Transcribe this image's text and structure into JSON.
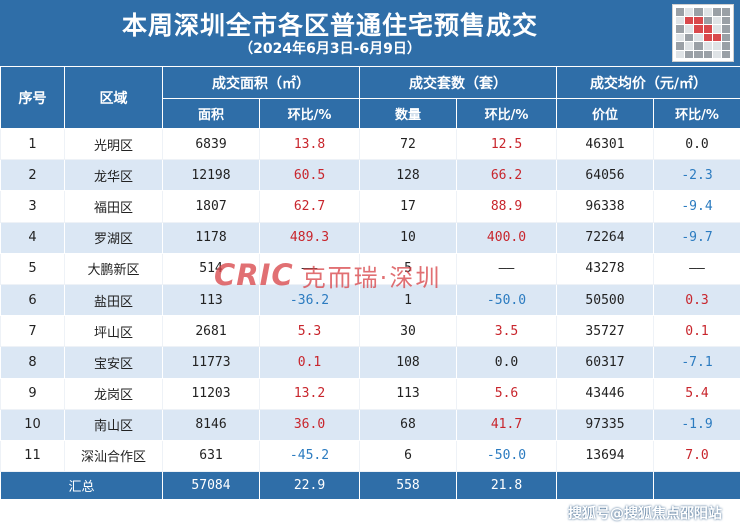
{
  "header": {
    "title": "本周深圳全市各区普通住宅预售成交",
    "subtitle": "（2024年6月3日-6月9日）"
  },
  "columns": {
    "seq": "序号",
    "district": "区域",
    "area_group": "成交面积（㎡）",
    "units_group": "成交套数（套）",
    "price_group": "成交均价（元/㎡）",
    "area": "面积",
    "area_chg": "环比/%",
    "units": "数量",
    "units_chg": "环比/%",
    "price": "价位",
    "price_chg": "环比/%"
  },
  "rows": [
    {
      "seq": "1",
      "district": "光明区",
      "area": "6839",
      "area_chg": "13.8",
      "area_dir": "up",
      "units": "72",
      "units_chg": "12.5",
      "units_dir": "up",
      "price": "46301",
      "price_chg": "0.0",
      "price_dir": "flat"
    },
    {
      "seq": "2",
      "district": "龙华区",
      "area": "12198",
      "area_chg": "60.5",
      "area_dir": "up",
      "units": "128",
      "units_chg": "66.2",
      "units_dir": "up",
      "price": "64056",
      "price_chg": "-2.3",
      "price_dir": "down"
    },
    {
      "seq": "3",
      "district": "福田区",
      "area": "1807",
      "area_chg": "62.7",
      "area_dir": "up",
      "units": "17",
      "units_chg": "88.9",
      "units_dir": "up",
      "price": "96338",
      "price_chg": "-9.4",
      "price_dir": "down"
    },
    {
      "seq": "4",
      "district": "罗湖区",
      "area": "1178",
      "area_chg": "489.3",
      "area_dir": "up",
      "units": "10",
      "units_chg": "400.0",
      "units_dir": "up",
      "price": "72264",
      "price_chg": "-9.7",
      "price_dir": "down"
    },
    {
      "seq": "5",
      "district": "大鹏新区",
      "area": "514",
      "area_chg": "——",
      "area_dir": "flat",
      "units": "5",
      "units_chg": "——",
      "units_dir": "flat",
      "price": "43278",
      "price_chg": "——",
      "price_dir": "flat"
    },
    {
      "seq": "6",
      "district": "盐田区",
      "area": "113",
      "area_chg": "-36.2",
      "area_dir": "down",
      "units": "1",
      "units_chg": "-50.0",
      "units_dir": "down",
      "price": "50500",
      "price_chg": "0.3",
      "price_dir": "up"
    },
    {
      "seq": "7",
      "district": "坪山区",
      "area": "2681",
      "area_chg": "5.3",
      "area_dir": "up",
      "units": "30",
      "units_chg": "3.5",
      "units_dir": "up",
      "price": "35727",
      "price_chg": "0.1",
      "price_dir": "up"
    },
    {
      "seq": "8",
      "district": "宝安区",
      "area": "11773",
      "area_chg": "0.1",
      "area_dir": "up",
      "units": "108",
      "units_chg": "0.0",
      "units_dir": "flat",
      "price": "60317",
      "price_chg": "-7.1",
      "price_dir": "down"
    },
    {
      "seq": "9",
      "district": "龙岗区",
      "area": "11203",
      "area_chg": "13.2",
      "area_dir": "up",
      "units": "113",
      "units_chg": "5.6",
      "units_dir": "up",
      "price": "43446",
      "price_chg": "5.4",
      "price_dir": "up"
    },
    {
      "seq": "10",
      "district": "南山区",
      "area": "8146",
      "area_chg": "36.0",
      "area_dir": "up",
      "units": "68",
      "units_chg": "41.7",
      "units_dir": "up",
      "price": "97335",
      "price_chg": "-1.9",
      "price_dir": "down"
    },
    {
      "seq": "11",
      "district": "深汕合作区",
      "area": "631",
      "area_chg": "-45.2",
      "area_dir": "down",
      "units": "6",
      "units_chg": "-50.0",
      "units_dir": "down",
      "price": "13694",
      "price_chg": "7.0",
      "price_dir": "up"
    }
  ],
  "total": {
    "label": "汇总",
    "area": "57084",
    "area_chg": "22.9",
    "units": "558",
    "units_chg": "21.8"
  },
  "watermark": {
    "logo": "CRIC",
    "text": "克而瑞·深圳"
  },
  "source": "搜狐号@搜狐焦点邵阳站",
  "colors": {
    "header_blue": "#2f6ea8",
    "stripe_blue": "#dbe7f4",
    "increase_red": "#c8252c",
    "decrease_blue": "#2b7bc0",
    "watermark_red": "#d9484c"
  }
}
